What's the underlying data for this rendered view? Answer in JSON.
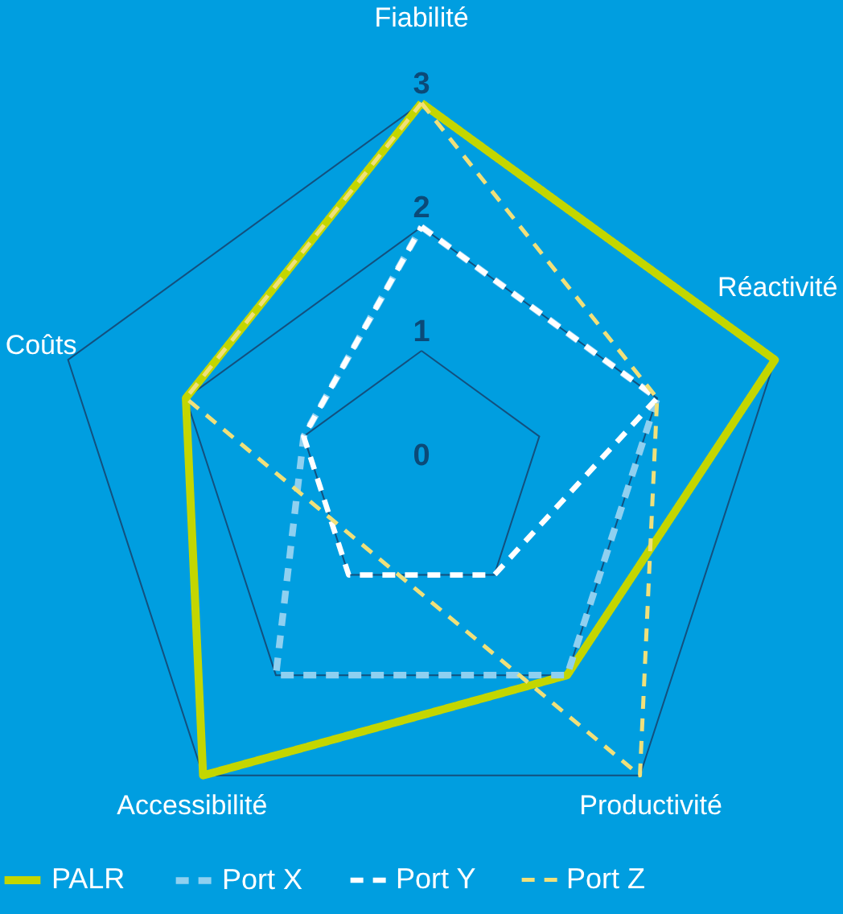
{
  "chart_data": {
    "type": "radar",
    "categories": [
      "Fiabilité",
      "Réactivité",
      "Productivité",
      "Accessibilité",
      "Coûts"
    ],
    "series": [
      {
        "name": "PALR",
        "color": "#c4d600",
        "line_style": "solid",
        "values": [
          3,
          3,
          2,
          3,
          2
        ]
      },
      {
        "name": "Port X",
        "color": "#8fd0f0",
        "line_style": "dashed",
        "values": [
          2,
          2,
          2,
          2,
          1
        ]
      },
      {
        "name": "Port Y",
        "color": "#ffffff",
        "line_style": "dashed",
        "values": [
          2,
          2,
          1,
          1,
          1
        ]
      },
      {
        "name": "Port Z",
        "color": "#f0e07a",
        "line_style": "dashed",
        "values": [
          3,
          2,
          3,
          null,
          2
        ]
      }
    ],
    "ylim": [
      0,
      3
    ],
    "yticks": [
      0,
      1,
      2,
      3
    ],
    "grid": true,
    "legend": "bottom",
    "marker": "none"
  }
}
